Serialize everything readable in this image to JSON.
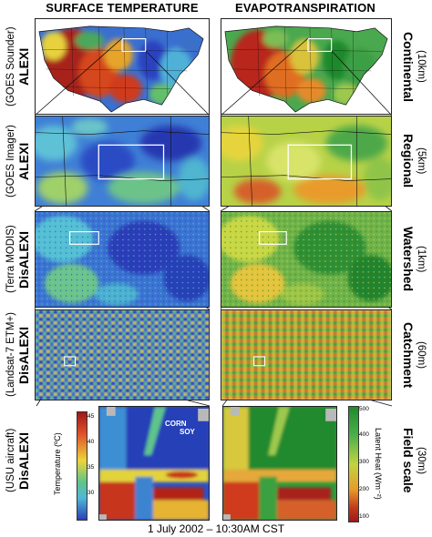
{
  "columns": {
    "left": "SURFACE TEMPERATURE",
    "right": "EVAPOTRANSPIRATION"
  },
  "rows": [
    {
      "model": "ALEXI",
      "sensor": "(GOES Sounder)",
      "scale": "Continental",
      "resolution": "(10km)"
    },
    {
      "model": "ALEXI",
      "sensor": "(GOES Imager)",
      "scale": "Regional",
      "resolution": "(5km)"
    },
    {
      "model": "DisALEXI",
      "sensor": "(Terra MODIS)",
      "scale": "Watershed",
      "resolution": "(1km)"
    },
    {
      "model": "DisALEXI",
      "sensor": "(Landsat-7 ETM+)",
      "scale": "Catchment",
      "resolution": "(60m)"
    },
    {
      "model": "DisALEXI",
      "sensor": "(USU aircraft)",
      "scale": "Field scale",
      "resolution": "(30m)"
    }
  ],
  "temperature_colorbar": {
    "label": "Temperature (ºC)",
    "ticks": [
      "45",
      "40",
      "35",
      "30"
    ]
  },
  "latent_colorbar": {
    "label": "Latent Heat (Wm⁻²)",
    "ticks": [
      "500",
      "400",
      "300",
      "200",
      "100"
    ]
  },
  "field_labels": {
    "corn": "CORN",
    "soy": "SOY"
  },
  "footer": "1 July 2002 – 10:30AM CST",
  "colors": {
    "hot": "#b22018",
    "warm": "#e8d83a",
    "mid": "#5fbf6a",
    "cool": "#2a4fc8",
    "et_high": "#1f8a2c",
    "et_low": "#c23a1c"
  }
}
